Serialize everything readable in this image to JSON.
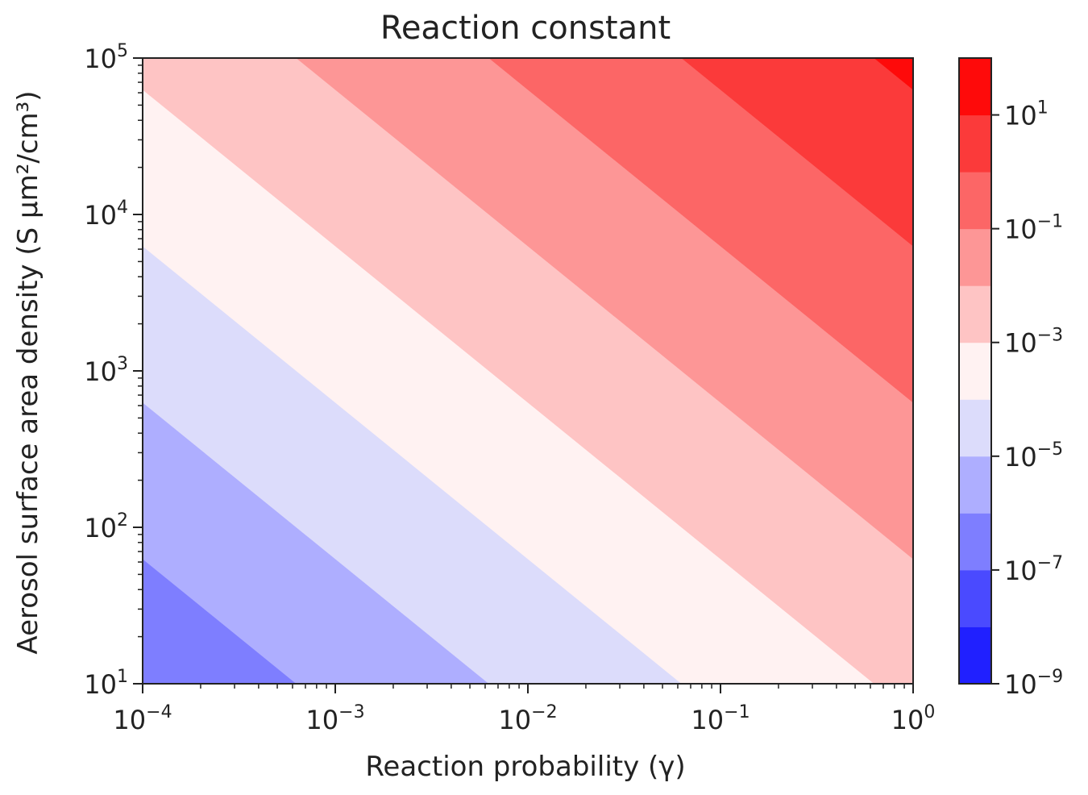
{
  "chart_data": {
    "type": "heatmap",
    "title": "Reaction constant",
    "xlabel": "Reaction probability (γ)",
    "ylabel": "Aerosol surface area density (S μm²/cm³)",
    "x_scale": "log",
    "y_scale": "log",
    "xlim": [
      0.0001,
      1
    ],
    "ylim": [
      10,
      100000
    ],
    "x_ticks": [
      {
        "base": "10",
        "exp": "−4",
        "value": 0.0001
      },
      {
        "base": "10",
        "exp": "−3",
        "value": 0.001
      },
      {
        "base": "10",
        "exp": "−2",
        "value": 0.01
      },
      {
        "base": "10",
        "exp": "−1",
        "value": 0.1
      },
      {
        "base": "10",
        "exp": "0",
        "value": 1
      }
    ],
    "y_ticks": [
      {
        "base": "10",
        "exp": "1",
        "value": 10
      },
      {
        "base": "10",
        "exp": "2",
        "value": 100
      },
      {
        "base": "10",
        "exp": "3",
        "value": 1000
      },
      {
        "base": "10",
        "exp": "4",
        "value": 10000
      },
      {
        "base": "10",
        "exp": "5",
        "value": 100000
      }
    ],
    "colorbar": {
      "scale": "log",
      "range": [
        1e-09,
        100
      ],
      "level_exponents": [
        -9,
        -8,
        -7,
        -6,
        -5,
        -4,
        -3,
        -2,
        -1,
        0,
        1,
        2
      ],
      "colors": [
        "#2020ff",
        "#4a4aff",
        "#7e7eff",
        "#aeaeff",
        "#dcdcfb",
        "#fff2f2",
        "#fec4c4",
        "#fd9696",
        "#fc6666",
        "#fb3a3a",
        "#fe0a0a"
      ],
      "ticks": [
        {
          "base": "10",
          "exp": "1",
          "value": 10
        },
        {
          "base": "10",
          "exp": "−1",
          "value": 0.1
        },
        {
          "base": "10",
          "exp": "−3",
          "value": 0.001
        },
        {
          "base": "10",
          "exp": "−5",
          "value": 1e-05
        },
        {
          "base": "10",
          "exp": "−7",
          "value": 1e-07
        },
        {
          "base": "10",
          "exp": "−9",
          "value": 1e-09
        }
      ]
    },
    "field_model": {
      "description": "k ∝ γ · S",
      "log10_k_at_gamma_1_S_1e5": 1.2
    },
    "grid": false
  }
}
